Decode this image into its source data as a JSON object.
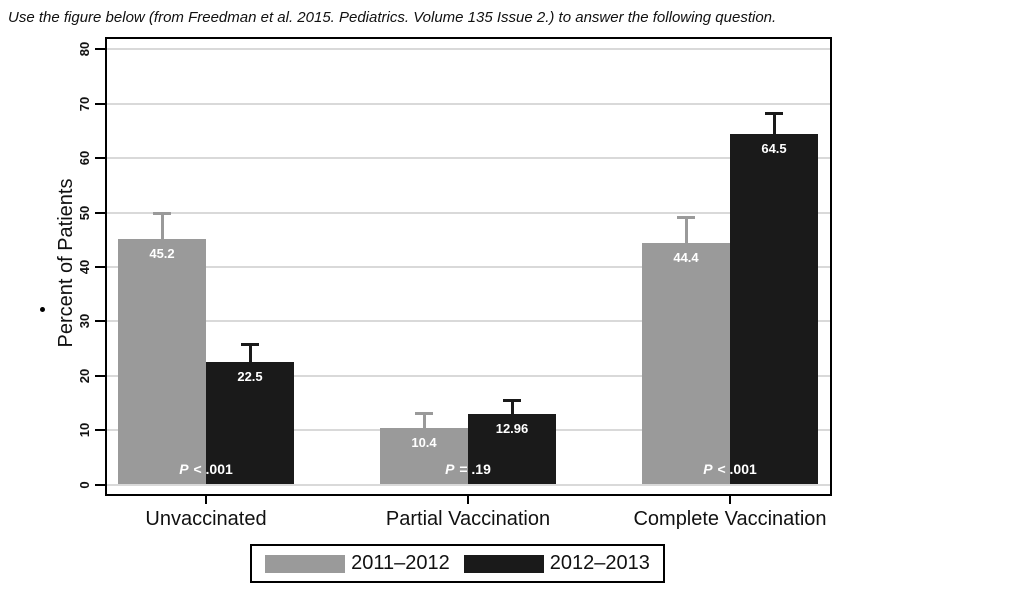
{
  "header": {
    "text": "Use the figure below (from Freedman et al. 2015. Pediatrics. Volume 135 Issue 2.) to answer the following question."
  },
  "chart_data": {
    "type": "bar",
    "title": "",
    "xlabel": "",
    "ylabel": "Percent of Patients",
    "ylim": [
      0,
      80
    ],
    "yticks": [
      0,
      10,
      20,
      30,
      40,
      50,
      60,
      70,
      80
    ],
    "grid": true,
    "legend_position": "bottom",
    "categories": [
      "Unvaccinated",
      "Partial Vaccination",
      "Complete Vaccination"
    ],
    "series": [
      {
        "name": "2011–2012",
        "color": "#9a9a9a",
        "values": [
          45.2,
          10.4,
          44.4
        ],
        "value_labels": [
          "45.2",
          "10.4",
          "44.4"
        ],
        "upper_ci": [
          49.9,
          13.1,
          49.2
        ]
      },
      {
        "name": "2012–2013",
        "color": "#1a1a1a",
        "values": [
          22.5,
          12.96,
          64.5
        ],
        "value_labels": [
          "22.5",
          "12.96",
          "64.5"
        ],
        "upper_ci": [
          25.8,
          15.5,
          68.3
        ]
      }
    ],
    "p_values": [
      "P < .001",
      "P = .19",
      "P < .001"
    ]
  },
  "colors": {
    "bar_gray": "#9a9a9a",
    "bar_black": "#1a1a1a",
    "gridline": "#d9d9d9",
    "axis": "#000000",
    "value_label_text": "#ffffff"
  }
}
